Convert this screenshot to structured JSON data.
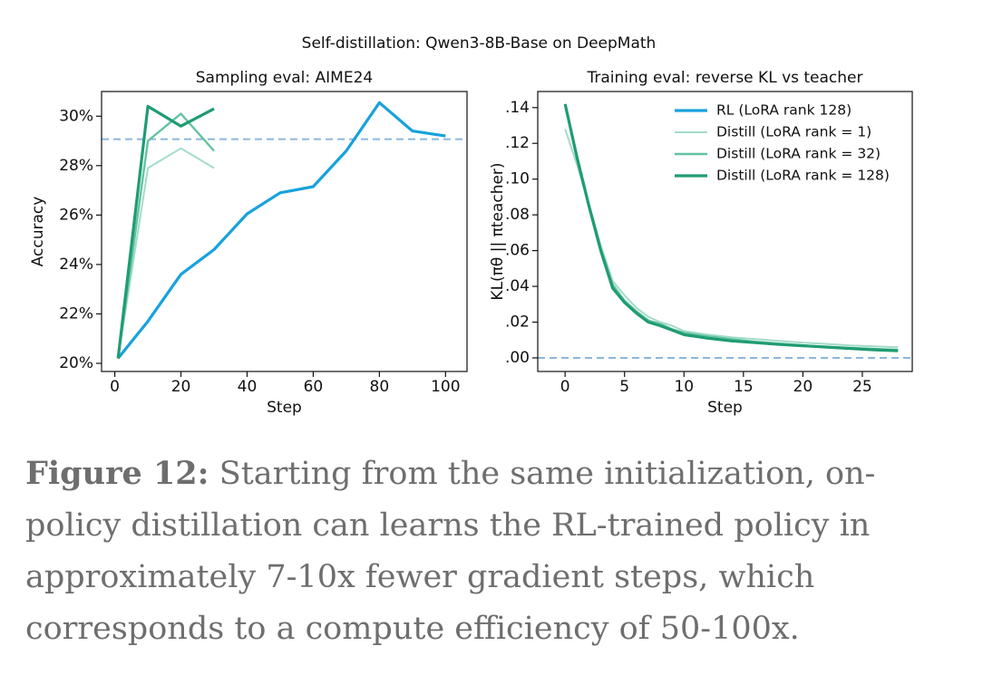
{
  "suptitle": "Self-distillation: Qwen3-8B-Base on DeepMath",
  "chart_data": [
    {
      "type": "line",
      "title": "Sampling eval: AIME24",
      "xlabel": "Step",
      "ylabel": "Accuracy",
      "xlim": [
        -4,
        106.5
      ],
      "xticks": [
        0,
        20,
        40,
        60,
        80,
        100
      ],
      "ylim": [
        19.67,
        31.0
      ],
      "yticks": [
        {
          "value": 20,
          "label": "20%"
        },
        {
          "value": 22,
          "label": "22%"
        },
        {
          "value": 24,
          "label": "24%"
        },
        {
          "value": 26,
          "label": "26%"
        },
        {
          "value": 28,
          "label": "28%"
        },
        {
          "value": 30,
          "label": "30%"
        }
      ],
      "hline": 29.07,
      "hline_color": "#8db6dd",
      "legend": false,
      "series": [
        {
          "color": "#17a2dc",
          "width": 3.2,
          "x": [
            1,
            10,
            20,
            30,
            40,
            50,
            60,
            70,
            80,
            90,
            100
          ],
          "values": [
            20.2,
            21.7,
            23.6,
            24.6,
            26.05,
            26.9,
            27.15,
            28.6,
            30.55,
            29.4,
            29.2
          ]
        },
        {
          "color": "#a3dcc6",
          "width": 2,
          "x": [
            1,
            10,
            20,
            30
          ],
          "values": [
            20.2,
            27.9,
            28.7,
            27.9
          ]
        },
        {
          "color": "#62c3a0",
          "width": 2.4,
          "x": [
            1,
            10,
            20,
            30
          ],
          "values": [
            20.2,
            29.0,
            30.1,
            28.6
          ]
        },
        {
          "color": "#1f9c72",
          "width": 3.2,
          "x": [
            1,
            10,
            20,
            30
          ],
          "values": [
            20.2,
            30.4,
            29.6,
            30.3
          ]
        }
      ]
    },
    {
      "type": "line",
      "title": "Training eval: reverse KL vs teacher",
      "xlabel": "Step",
      "ylabel": "KL(πθ || πteacher)",
      "xlim": [
        -2.3,
        29.2
      ],
      "xticks": [
        0,
        5,
        10,
        15,
        20,
        25
      ],
      "ylim": [
        -0.0076,
        0.149
      ],
      "yticks": [
        {
          "value": 0,
          "label": ".00"
        },
        {
          "value": 0.02,
          "label": ".02"
        },
        {
          "value": 0.04,
          "label": ".04"
        },
        {
          "value": 0.06,
          "label": ".06"
        },
        {
          "value": 0.08,
          "label": ".08"
        },
        {
          "value": 0.1,
          "label": ".10"
        },
        {
          "value": 0.12,
          "label": ".12"
        },
        {
          "value": 0.14,
          "label": ".14"
        }
      ],
      "hline": 0,
      "hline_color": "#8db6dd",
      "legend": "upper right",
      "series": [
        {
          "name": "RL (LoRA rank 128)",
          "color": "#17a2dc",
          "width": 3.2
        },
        {
          "name": "Distill (LoRA rank = 1)",
          "color": "#a3dcc6",
          "width": 2,
          "x": [
            0,
            1,
            2,
            3,
            4,
            5,
            6,
            7,
            8,
            9,
            10,
            12,
            14,
            16,
            18,
            20,
            22,
            24,
            26,
            28
          ],
          "values": [
            0.128,
            0.108,
            0.086,
            0.063,
            0.043,
            0.035,
            0.028,
            0.023,
            0.02,
            0.018,
            0.015,
            0.013,
            0.0115,
            0.0105,
            0.0095,
            0.0085,
            0.0078,
            0.007,
            0.0065,
            0.006
          ]
        },
        {
          "name": "Distill (LoRA rank = 32)",
          "color": "#62c3a0",
          "width": 2.4,
          "x": [
            0,
            1,
            2,
            3,
            4,
            5,
            6,
            7,
            8,
            9,
            10,
            12,
            14,
            16,
            18,
            20,
            22,
            24,
            26,
            28
          ],
          "values": [
            0.141,
            0.113,
            0.086,
            0.061,
            0.041,
            0.032,
            0.026,
            0.021,
            0.019,
            0.016,
            0.014,
            0.012,
            0.0105,
            0.009,
            0.008,
            0.007,
            0.0063,
            0.0056,
            0.005,
            0.0045
          ]
        },
        {
          "name": "Distill (LoRA rank = 128)",
          "color": "#1f9c72",
          "width": 3.2,
          "x": [
            0,
            1,
            2,
            3,
            4,
            5,
            6,
            7,
            8,
            9,
            10,
            12,
            14,
            16,
            18,
            20,
            22,
            24,
            26,
            28
          ],
          "values": [
            0.142,
            0.112,
            0.085,
            0.06,
            0.039,
            0.031,
            0.025,
            0.02,
            0.018,
            0.0155,
            0.013,
            0.011,
            0.0095,
            0.0085,
            0.0075,
            0.0068,
            0.006,
            0.0052,
            0.0045,
            0.004
          ]
        }
      ]
    }
  ],
  "caption": {
    "label": "Figure 12:",
    "text": "Starting from the same initialization, on-policy distillation can learns the RL-trained policy in approximately 7-10x fewer gradient steps, which corresponds to a compute efficiency of 50-100x."
  }
}
